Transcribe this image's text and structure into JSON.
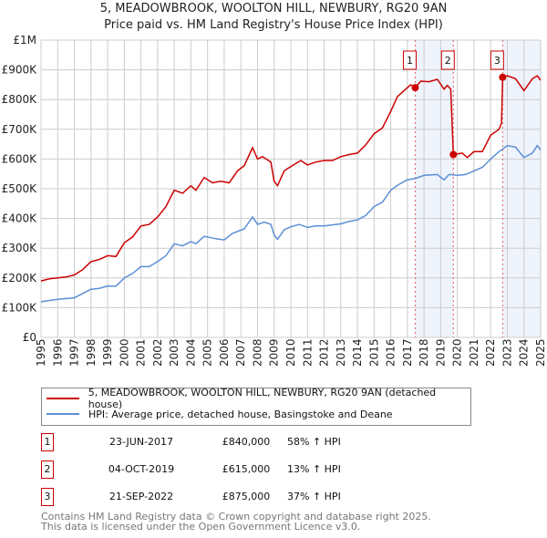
{
  "chart_data": {
    "type": "line",
    "title": "5, MEADOWBROOK, WOOLTON HILL, NEWBURY, RG20 9AN",
    "subtitle": "Price paid vs. HM Land Registry's House Price Index (HPI)",
    "xlim": [
      1995,
      2025
    ],
    "ylim": [
      0,
      1000000
    ],
    "grid": true,
    "y_ticks": [
      {
        "v": 0,
        "label": "£0"
      },
      {
        "v": 100000,
        "label": "£100K"
      },
      {
        "v": 200000,
        "label": "£200K"
      },
      {
        "v": 300000,
        "label": "£300K"
      },
      {
        "v": 400000,
        "label": "£400K"
      },
      {
        "v": 500000,
        "label": "£500K"
      },
      {
        "v": 600000,
        "label": "£600K"
      },
      {
        "v": 700000,
        "label": "£700K"
      },
      {
        "v": 800000,
        "label": "£800K"
      },
      {
        "v": 900000,
        "label": "£900K"
      },
      {
        "v": 1000000,
        "label": "£1M"
      }
    ],
    "x_ticks": [
      "1995",
      "1996",
      "1997",
      "1998",
      "1999",
      "2000",
      "2001",
      "2002",
      "2003",
      "2004",
      "2005",
      "2006",
      "2007",
      "2008",
      "2009",
      "2010",
      "2011",
      "2012",
      "2013",
      "2014",
      "2015",
      "2016",
      "2017",
      "2018",
      "2019",
      "2020",
      "2021",
      "2022",
      "2023",
      "2024",
      "2025"
    ],
    "shaded_ranges": [
      [
        2017.47,
        2019.76
      ],
      [
        2022.72,
        2025
      ]
    ],
    "series": [
      {
        "name": "5, MEADOWBROOK, WOOLTON HILL, NEWBURY, RG20 9AN (detached house)",
        "color": "#cc0000",
        "x": [
          1995,
          1995.5,
          1996,
          1996.5,
          1997,
          1997.5,
          1998,
          1998.5,
          1999,
          1999.5,
          2000,
          2000.5,
          2001,
          2001.5,
          2002,
          2002.5,
          2003,
          2003.5,
          2004,
          2004.3,
          2004.8,
          2005.3,
          2005.8,
          2006.3,
          2006.8,
          2007.2,
          2007.7,
          2008.0,
          2008.3,
          2008.8,
          2009.0,
          2009.2,
          2009.6,
          2010,
          2010.6,
          2011,
          2011.5,
          2012,
          2012.5,
          2013,
          2013.5,
          2014,
          2014.5,
          2015,
          2015.5,
          2016,
          2016.4,
          2016.8,
          2017.2,
          2017.47,
          2017.8,
          2018.3,
          2018.8,
          2019.2,
          2019.4,
          2019.6,
          2019.76,
          2020.3,
          2020.6,
          2021,
          2021.5,
          2022,
          2022.5,
          2022.65,
          2022.72,
          2023,
          2023.5,
          2024,
          2024.5,
          2024.8,
          2025
        ],
        "y": [
          190000,
          197000,
          200000,
          203000,
          210000,
          228000,
          255000,
          262000,
          275000,
          272000,
          318000,
          338000,
          375000,
          380000,
          405000,
          440000,
          495000,
          485000,
          510000,
          495000,
          538000,
          520000,
          525000,
          520000,
          560000,
          578000,
          638000,
          600000,
          608000,
          590000,
          525000,
          510000,
          560000,
          575000,
          595000,
          580000,
          590000,
          595000,
          595000,
          608000,
          615000,
          620000,
          648000,
          685000,
          705000,
          760000,
          810000,
          830000,
          850000,
          840000,
          862000,
          860000,
          868000,
          835000,
          848000,
          835000,
          615000,
          620000,
          605000,
          625000,
          625000,
          680000,
          700000,
          720000,
          875000,
          880000,
          870000,
          830000,
          870000,
          880000,
          865000
        ]
      },
      {
        "name": "HPI: Average price, detached house, Basingstoke and Deane",
        "color": "#5b8fd6",
        "x": [
          1995,
          1996,
          1997,
          1998,
          1998.5,
          1999,
          1999.5,
          2000,
          2000.5,
          2001,
          2001.5,
          2002,
          2002.5,
          2003,
          2003.5,
          2004,
          2004.3,
          2004.8,
          2005.5,
          2006,
          2006.5,
          2007.2,
          2007.7,
          2008,
          2008.4,
          2008.8,
          2009.0,
          2009.2,
          2009.6,
          2010,
          2010.5,
          2011,
          2011.5,
          2012,
          2013,
          2013.5,
          2014,
          2014.5,
          2015,
          2015.5,
          2016,
          2016.5,
          2017,
          2017.5,
          2018,
          2018.8,
          2019.2,
          2019.5,
          2020,
          2020.5,
          2021,
          2021.5,
          2022,
          2022.5,
          2023,
          2023.5,
          2024,
          2024.5,
          2024.8,
          2025
        ],
        "y": [
          120000,
          128000,
          133000,
          162000,
          165000,
          173000,
          172000,
          200000,
          215000,
          238000,
          238000,
          255000,
          275000,
          315000,
          308000,
          322000,
          315000,
          340000,
          332000,
          328000,
          350000,
          365000,
          405000,
          380000,
          388000,
          380000,
          345000,
          330000,
          362000,
          372000,
          380000,
          370000,
          375000,
          375000,
          382000,
          390000,
          395000,
          410000,
          440000,
          455000,
          495000,
          515000,
          530000,
          535000,
          545000,
          548000,
          530000,
          548000,
          545000,
          548000,
          560000,
          572000,
          600000,
          625000,
          645000,
          640000,
          605000,
          620000,
          645000,
          630000
        ]
      }
    ],
    "sales": [
      {
        "n": "1",
        "x": 2017.47,
        "y": 840000,
        "date": "23-JUN-2017",
        "price": "£840,000",
        "hpi": "58% ↑ HPI"
      },
      {
        "n": "2",
        "x": 2019.76,
        "y": 615000,
        "date": "04-OCT-2019",
        "price": "£615,000",
        "hpi": "13% ↑ HPI"
      },
      {
        "n": "3",
        "x": 2022.72,
        "y": 875000,
        "date": "21-SEP-2022",
        "price": "£875,000",
        "hpi": "37% ↑ HPI"
      }
    ]
  },
  "footer": {
    "line1": "Contains HM Land Registry data © Crown copyright and database right 2025.",
    "line2": "This data is licensed under the Open Government Licence v3.0."
  }
}
